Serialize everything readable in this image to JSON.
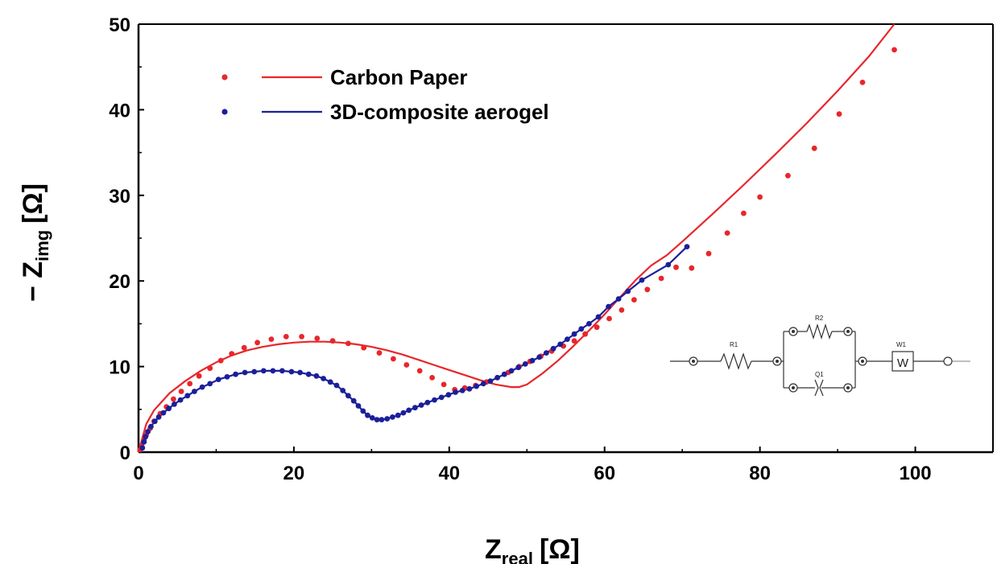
{
  "chart_data": {
    "type": "scatter",
    "xlabel": {
      "main": "Z",
      "sub": "real",
      "unit": "[Ω]"
    },
    "ylabel": {
      "prefix": "− Z",
      "sub": "img",
      "unit": "[Ω]"
    },
    "xlim": [
      0,
      110
    ],
    "ylim": [
      0,
      50
    ],
    "x_ticks": [
      0,
      20,
      40,
      60,
      80,
      100
    ],
    "y_ticks": [
      0,
      10,
      20,
      30,
      40,
      50
    ],
    "legend_position": "top-left",
    "series": [
      {
        "name": "Carbon Paper",
        "color": "#e8262b",
        "points": [
          [
            0.2,
            0.3
          ],
          [
            0.4,
            0.8
          ],
          [
            0.7,
            1.4
          ],
          [
            1.0,
            2.0
          ],
          [
            1.5,
            2.8
          ],
          [
            2.0,
            3.6
          ],
          [
            2.8,
            4.5
          ],
          [
            3.6,
            5.3
          ],
          [
            4.5,
            6.2
          ],
          [
            5.5,
            7.1
          ],
          [
            6.6,
            8.0
          ],
          [
            7.8,
            8.9
          ],
          [
            9.2,
            9.8
          ],
          [
            10.6,
            10.7
          ],
          [
            12.0,
            11.5
          ],
          [
            13.6,
            12.2
          ],
          [
            15.3,
            12.8
          ],
          [
            17.1,
            13.2
          ],
          [
            19.0,
            13.5
          ],
          [
            21.0,
            13.5
          ],
          [
            23.0,
            13.3
          ],
          [
            25.0,
            13.0
          ],
          [
            27.0,
            12.7
          ],
          [
            29.0,
            12.2
          ],
          [
            31.0,
            11.6
          ],
          [
            32.8,
            10.9
          ],
          [
            34.5,
            10.2
          ],
          [
            36.2,
            9.5
          ],
          [
            37.8,
            8.7
          ],
          [
            39.3,
            7.9
          ],
          [
            40.7,
            7.3
          ],
          [
            42.0,
            7.5
          ],
          [
            43.4,
            7.8
          ],
          [
            44.8,
            8.2
          ],
          [
            46.2,
            8.7
          ],
          [
            47.6,
            9.3
          ],
          [
            49.0,
            10.0
          ],
          [
            50.4,
            10.6
          ],
          [
            51.8,
            11.2
          ],
          [
            53.2,
            11.8
          ],
          [
            54.7,
            12.4
          ],
          [
            56.1,
            13.0
          ],
          [
            57.5,
            13.8
          ],
          [
            59.0,
            14.6
          ],
          [
            60.6,
            15.6
          ],
          [
            62.2,
            16.6
          ],
          [
            63.8,
            17.8
          ],
          [
            65.5,
            19.0
          ],
          [
            67.3,
            20.3
          ],
          [
            69.2,
            21.6
          ],
          [
            71.2,
            21.5
          ],
          [
            73.4,
            23.2
          ],
          [
            75.8,
            25.6
          ],
          [
            77.9,
            27.9
          ],
          [
            80.0,
            29.8
          ],
          [
            83.6,
            32.3
          ],
          [
            87.0,
            35.5
          ],
          [
            90.2,
            39.5
          ],
          [
            93.2,
            43.2
          ],
          [
            97.3,
            47.0
          ]
        ],
        "fit": [
          [
            0,
            0
          ],
          [
            1,
            3.3
          ],
          [
            2,
            4.9
          ],
          [
            4,
            6.9
          ],
          [
            6,
            8.3
          ],
          [
            8,
            9.5
          ],
          [
            10,
            10.5
          ],
          [
            12,
            11.3
          ],
          [
            14,
            11.9
          ],
          [
            16,
            12.3
          ],
          [
            18,
            12.6
          ],
          [
            20,
            12.8
          ],
          [
            22,
            12.9
          ],
          [
            24,
            12.9
          ],
          [
            26,
            12.8
          ],
          [
            28,
            12.6
          ],
          [
            30,
            12.3
          ],
          [
            32,
            11.9
          ],
          [
            34,
            11.4
          ],
          [
            36,
            10.8
          ],
          [
            38,
            10.2
          ],
          [
            40,
            9.6
          ],
          [
            42,
            9.0
          ],
          [
            44,
            8.4
          ],
          [
            46,
            7.9
          ],
          [
            48,
            7.6
          ],
          [
            49,
            7.6
          ],
          [
            50,
            7.9
          ],
          [
            52,
            9.2
          ],
          [
            54,
            10.7
          ],
          [
            56,
            12.4
          ],
          [
            58,
            14.2
          ],
          [
            60,
            16.1
          ],
          [
            62,
            18.1
          ],
          [
            64,
            20.1
          ],
          [
            66,
            21.8
          ],
          [
            68,
            23.0
          ],
          [
            70,
            24.6
          ],
          [
            74,
            27.9
          ],
          [
            78,
            31.3
          ],
          [
            82,
            34.8
          ],
          [
            86,
            38.4
          ],
          [
            90,
            42.2
          ],
          [
            94,
            46.2
          ],
          [
            97.3,
            50.0
          ]
        ]
      },
      {
        "name": "3D-composite aerogel",
        "color": "#1b1f9a",
        "points": [
          [
            0.5,
            0.5
          ],
          [
            0.7,
            1.2
          ],
          [
            0.9,
            1.8
          ],
          [
            1.2,
            2.4
          ],
          [
            1.6,
            3.0
          ],
          [
            2.1,
            3.6
          ],
          [
            2.6,
            4.1
          ],
          [
            3.2,
            4.6
          ],
          [
            3.9,
            5.1
          ],
          [
            4.6,
            5.6
          ],
          [
            5.4,
            6.1
          ],
          [
            6.3,
            6.6
          ],
          [
            7.2,
            7.1
          ],
          [
            8.2,
            7.6
          ],
          [
            9.2,
            8.0
          ],
          [
            10.3,
            8.5
          ],
          [
            11.4,
            8.8
          ],
          [
            12.5,
            9.1
          ],
          [
            13.7,
            9.3
          ],
          [
            14.9,
            9.4
          ],
          [
            16.1,
            9.5
          ],
          [
            17.3,
            9.5
          ],
          [
            18.5,
            9.5
          ],
          [
            19.7,
            9.4
          ],
          [
            20.8,
            9.3
          ],
          [
            21.9,
            9.1
          ],
          [
            22.9,
            8.9
          ],
          [
            23.8,
            8.6
          ],
          [
            24.7,
            8.2
          ],
          [
            25.5,
            7.8
          ],
          [
            26.3,
            7.2
          ],
          [
            27.0,
            6.6
          ],
          [
            27.7,
            6.0
          ],
          [
            28.3,
            5.4
          ],
          [
            28.9,
            4.8
          ],
          [
            29.5,
            4.3
          ],
          [
            30.1,
            4.0
          ],
          [
            30.7,
            3.8
          ],
          [
            31.3,
            3.8
          ],
          [
            32.0,
            3.9
          ],
          [
            32.7,
            4.1
          ],
          [
            33.4,
            4.3
          ],
          [
            34.1,
            4.6
          ],
          [
            34.8,
            4.9
          ],
          [
            35.6,
            5.2
          ],
          [
            36.4,
            5.5
          ],
          [
            37.2,
            5.8
          ],
          [
            38.1,
            6.1
          ],
          [
            39.0,
            6.4
          ],
          [
            39.9,
            6.7
          ],
          [
            40.8,
            7.0
          ],
          [
            41.7,
            7.2
          ],
          [
            42.6,
            7.4
          ],
          [
            43.5,
            7.7
          ],
          [
            44.4,
            8.0
          ],
          [
            45.3,
            8.3
          ],
          [
            46.2,
            8.7
          ],
          [
            47.1,
            9.1
          ],
          [
            48.0,
            9.5
          ],
          [
            48.9,
            9.9
          ],
          [
            49.8,
            10.3
          ],
          [
            50.7,
            10.7
          ],
          [
            51.6,
            11.1
          ],
          [
            52.5,
            11.6
          ],
          [
            53.4,
            12.1
          ],
          [
            54.3,
            12.6
          ],
          [
            55.2,
            13.2
          ],
          [
            56.1,
            13.8
          ],
          [
            57.0,
            14.4
          ],
          [
            58.0,
            15.0
          ],
          [
            59.2,
            15.8
          ],
          [
            60.5,
            17.0
          ],
          [
            61.8,
            17.9
          ],
          [
            63.0,
            18.8
          ],
          [
            64.8,
            20.1
          ],
          [
            68.2,
            21.9
          ],
          [
            70.6,
            24.0
          ]
        ]
      }
    ]
  },
  "inset": {
    "components": [
      {
        "label": "R1",
        "type": "resistor"
      },
      {
        "label": "R2",
        "type": "resistor"
      },
      {
        "label": "Q1",
        "type": "cpe"
      },
      {
        "label": "W1",
        "type": "warburg",
        "symbol": "W"
      }
    ]
  }
}
